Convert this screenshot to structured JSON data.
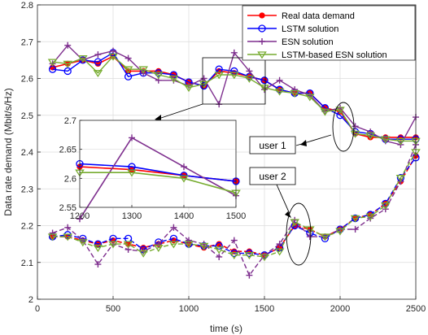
{
  "chart_data": {
    "type": "line",
    "xlabel": "time (s)",
    "ylabel": "Data rate demand (Mbit/s/Hz)",
    "xlim": [
      0,
      2500
    ],
    "ylim": [
      2.0,
      2.8
    ],
    "xticks": [
      "0",
      "500",
      "1000",
      "1500",
      "2000",
      "2500"
    ],
    "yticks": [
      "2",
      "2.1",
      "2.2",
      "2.3",
      "2.4",
      "2.5",
      "2.6",
      "2.7",
      "2.8"
    ],
    "grid": true,
    "legend_position": "top-right",
    "colors": {
      "real": "#ff0000",
      "lstm": "#0000ff",
      "esn": "#7e2f8e",
      "lstm_esn": "#77ac30"
    },
    "series": [
      {
        "name": "Real data demand",
        "user1": [
          [
            100,
            2.63
          ],
          [
            200,
            2.64
          ],
          [
            300,
            2.65
          ],
          [
            400,
            2.64
          ],
          [
            500,
            2.66
          ],
          [
            600,
            2.62
          ],
          [
            700,
            2.62
          ],
          [
            800,
            2.62
          ],
          [
            900,
            2.61
          ],
          [
            1000,
            2.59
          ],
          [
            1100,
            2.58
          ],
          [
            1200,
            2.62
          ],
          [
            1300,
            2.615
          ],
          [
            1400,
            2.605
          ],
          [
            1500,
            2.595
          ],
          [
            1600,
            2.57
          ],
          [
            1700,
            2.56
          ],
          [
            1800,
            2.56
          ],
          [
            1900,
            2.52
          ],
          [
            2000,
            2.51
          ],
          [
            2100,
            2.45
          ],
          [
            2200,
            2.44
          ],
          [
            2300,
            2.44
          ],
          [
            2400,
            2.44
          ],
          [
            2500,
            2.44
          ]
        ],
        "user2": [
          [
            100,
            2.17
          ],
          [
            200,
            2.17
          ],
          [
            300,
            2.16
          ],
          [
            400,
            2.15
          ],
          [
            500,
            2.16
          ],
          [
            600,
            2.15
          ],
          [
            700,
            2.14
          ],
          [
            800,
            2.15
          ],
          [
            900,
            2.16
          ],
          [
            1000,
            2.15
          ],
          [
            1100,
            2.14
          ],
          [
            1200,
            2.15
          ],
          [
            1300,
            2.13
          ],
          [
            1400,
            2.13
          ],
          [
            1500,
            2.12
          ],
          [
            1600,
            2.14
          ],
          [
            1700,
            2.2
          ],
          [
            1800,
            2.19
          ],
          [
            1900,
            2.17
          ],
          [
            2000,
            2.19
          ],
          [
            2100,
            2.22
          ],
          [
            2200,
            2.23
          ],
          [
            2300,
            2.26
          ],
          [
            2400,
            2.32
          ],
          [
            2500,
            2.39
          ]
        ]
      },
      {
        "name": "LSTM solution",
        "user1": [
          [
            100,
            2.625
          ],
          [
            200,
            2.62
          ],
          [
            300,
            2.65
          ],
          [
            400,
            2.645
          ],
          [
            500,
            2.67
          ],
          [
            600,
            2.605
          ],
          [
            700,
            2.615
          ],
          [
            800,
            2.615
          ],
          [
            900,
            2.61
          ],
          [
            1000,
            2.59
          ],
          [
            1100,
            2.58
          ],
          [
            1200,
            2.625
          ],
          [
            1300,
            2.62
          ],
          [
            1400,
            2.605
          ],
          [
            1500,
            2.595
          ],
          [
            1600,
            2.57
          ],
          [
            1700,
            2.56
          ],
          [
            1800,
            2.56
          ],
          [
            1900,
            2.52
          ],
          [
            2000,
            2.5
          ],
          [
            2100,
            2.455
          ],
          [
            2200,
            2.45
          ],
          [
            2300,
            2.435
          ],
          [
            2400,
            2.435
          ],
          [
            2500,
            2.435
          ]
        ],
        "user2": [
          [
            100,
            2.17
          ],
          [
            200,
            2.175
          ],
          [
            300,
            2.165
          ],
          [
            400,
            2.15
          ],
          [
            500,
            2.165
          ],
          [
            600,
            2.165
          ],
          [
            700,
            2.135
          ],
          [
            800,
            2.155
          ],
          [
            900,
            2.165
          ],
          [
            1000,
            2.15
          ],
          [
            1100,
            2.145
          ],
          [
            1200,
            2.145
          ],
          [
            1300,
            2.125
          ],
          [
            1400,
            2.125
          ],
          [
            1500,
            2.12
          ],
          [
            1600,
            2.14
          ],
          [
            1700,
            2.2
          ],
          [
            1800,
            2.18
          ],
          [
            1900,
            2.165
          ],
          [
            2000,
            2.19
          ],
          [
            2100,
            2.22
          ],
          [
            2200,
            2.23
          ],
          [
            2300,
            2.26
          ],
          [
            2400,
            2.33
          ],
          [
            2500,
            2.385
          ]
        ]
      },
      {
        "name": "ESN solution",
        "user1": [
          [
            100,
            2.64
          ],
          [
            200,
            2.69
          ],
          [
            300,
            2.65
          ],
          [
            400,
            2.665
          ],
          [
            500,
            2.675
          ],
          [
            600,
            2.655
          ],
          [
            700,
            2.615
          ],
          [
            800,
            2.595
          ],
          [
            900,
            2.595
          ],
          [
            1000,
            2.58
          ],
          [
            1100,
            2.6
          ],
          [
            1200,
            2.53
          ],
          [
            1300,
            2.67
          ],
          [
            1400,
            2.62
          ],
          [
            1500,
            2.57
          ],
          [
            1600,
            2.595
          ],
          [
            1700,
            2.57
          ],
          [
            1800,
            2.555
          ],
          [
            1900,
            2.51
          ],
          [
            2000,
            2.52
          ],
          [
            2100,
            2.47
          ],
          [
            2200,
            2.455
          ],
          [
            2300,
            2.43
          ],
          [
            2400,
            2.42
          ],
          [
            2500,
            2.495
          ]
        ],
        "user2": [
          [
            100,
            2.18
          ],
          [
            200,
            2.195
          ],
          [
            300,
            2.16
          ],
          [
            400,
            2.095
          ],
          [
            500,
            2.15
          ],
          [
            600,
            2.135
          ],
          [
            700,
            2.13
          ],
          [
            800,
            2.15
          ],
          [
            900,
            2.195
          ],
          [
            1000,
            2.16
          ],
          [
            1100,
            2.15
          ],
          [
            1200,
            2.115
          ],
          [
            1300,
            2.16
          ],
          [
            1400,
            2.065
          ],
          [
            1500,
            2.12
          ],
          [
            1600,
            2.15
          ],
          [
            1700,
            2.215
          ],
          [
            1800,
            2.17
          ],
          [
            1900,
            2.17
          ],
          [
            2000,
            2.19
          ],
          [
            2100,
            2.19
          ],
          [
            2200,
            2.22
          ],
          [
            2300,
            2.245
          ],
          [
            2400,
            2.32
          ],
          [
            2500,
            2.42
          ]
        ]
      },
      {
        "name": "LSTM-based ESN solution",
        "user1": [
          [
            100,
            2.645
          ],
          [
            200,
            2.64
          ],
          [
            300,
            2.655
          ],
          [
            400,
            2.615
          ],
          [
            500,
            2.66
          ],
          [
            600,
            2.625
          ],
          [
            700,
            2.625
          ],
          [
            800,
            2.61
          ],
          [
            900,
            2.6
          ],
          [
            1000,
            2.575
          ],
          [
            1100,
            2.585
          ],
          [
            1200,
            2.61
          ],
          [
            1300,
            2.61
          ],
          [
            1400,
            2.6
          ],
          [
            1500,
            2.575
          ],
          [
            1600,
            2.565
          ],
          [
            1700,
            2.56
          ],
          [
            1800,
            2.55
          ],
          [
            1900,
            2.51
          ],
          [
            2000,
            2.515
          ],
          [
            2100,
            2.45
          ],
          [
            2200,
            2.445
          ],
          [
            2300,
            2.435
          ],
          [
            2400,
            2.43
          ],
          [
            2500,
            2.43
          ]
        ],
        "user2": [
          [
            100,
            2.17
          ],
          [
            200,
            2.17
          ],
          [
            300,
            2.155
          ],
          [
            400,
            2.14
          ],
          [
            500,
            2.15
          ],
          [
            600,
            2.15
          ],
          [
            700,
            2.125
          ],
          [
            800,
            2.14
          ],
          [
            900,
            2.15
          ],
          [
            1000,
            2.15
          ],
          [
            1100,
            2.145
          ],
          [
            1200,
            2.135
          ],
          [
            1300,
            2.12
          ],
          [
            1400,
            2.12
          ],
          [
            1500,
            2.115
          ],
          [
            1600,
            2.13
          ],
          [
            1700,
            2.21
          ],
          [
            1800,
            2.19
          ],
          [
            1900,
            2.17
          ],
          [
            2000,
            2.185
          ],
          [
            2100,
            2.22
          ],
          [
            2200,
            2.225
          ],
          [
            2300,
            2.255
          ],
          [
            2400,
            2.33
          ],
          [
            2500,
            2.4
          ]
        ]
      }
    ],
    "annotations": {
      "user1_label": "user 1",
      "user2_label": "user 2"
    },
    "inset": {
      "xlim": [
        1200,
        1500
      ],
      "ylim": [
        2.55,
        2.7
      ],
      "xticks": [
        "1200",
        "1300",
        "1400",
        "1500"
      ],
      "yticks": [
        "2.55",
        "2.6",
        "2.65",
        "2.7"
      ]
    }
  }
}
